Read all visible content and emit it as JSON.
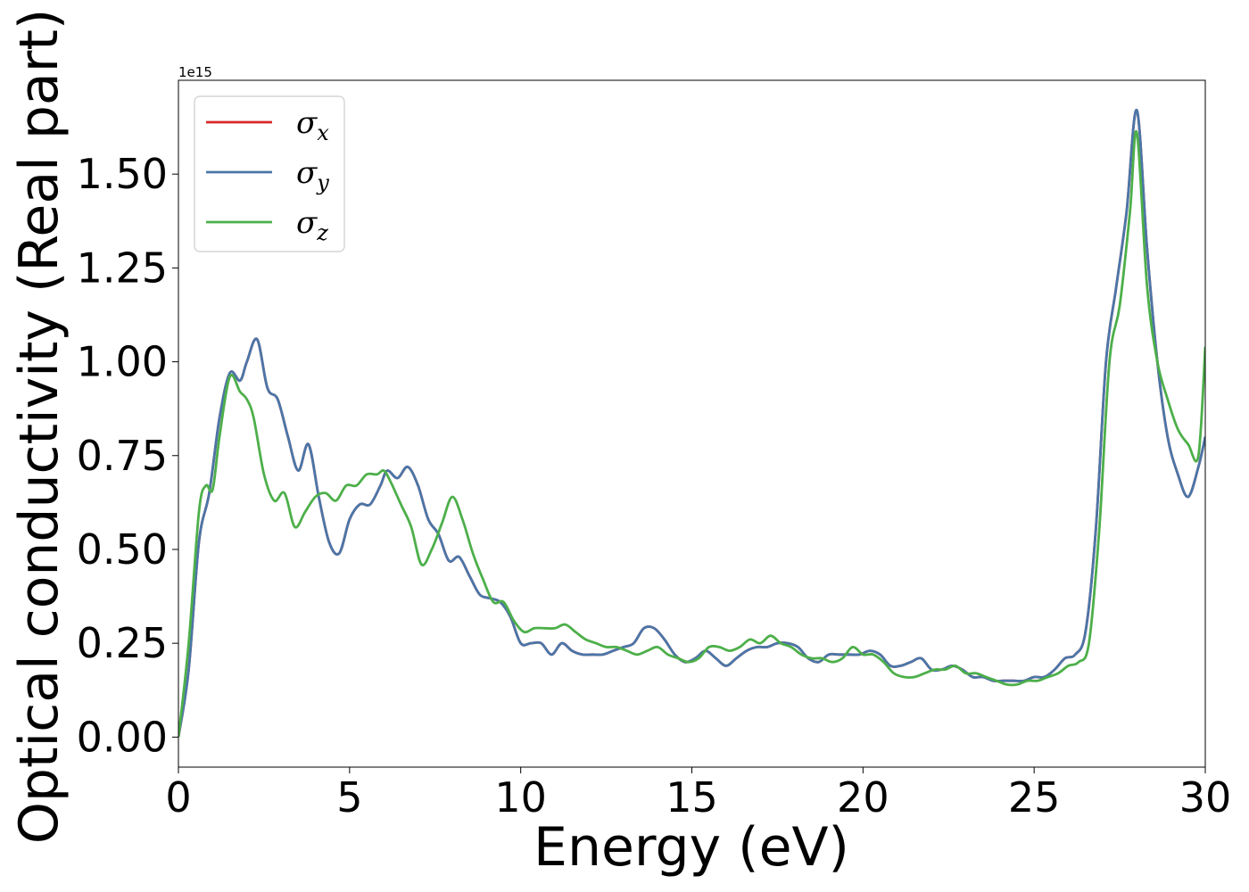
{
  "chart_data": {
    "type": "line",
    "xlabel": "Energy (eV)",
    "ylabel": "Optical conductivity (Real part)",
    "y_offset_text": "1e15",
    "xlim": [
      0,
      30
    ],
    "ylim": [
      -0.08,
      1.75
    ],
    "xticks": [
      0,
      5,
      10,
      15,
      20,
      25,
      30
    ],
    "xtick_labels": [
      "0",
      "5",
      "10",
      "15",
      "20",
      "25",
      "30"
    ],
    "yticks": [
      0.0,
      0.25,
      0.5,
      0.75,
      1.0,
      1.25,
      1.5
    ],
    "ytick_labels": [
      "0.00",
      "0.25",
      "0.50",
      "0.75",
      "1.00",
      "1.25",
      "1.50"
    ],
    "grid": false,
    "legend_position": "top-left",
    "series": [
      {
        "name": "σ",
        "sub": "x",
        "color": "#d62728",
        "x": [
          0,
          0.3,
          0.6,
          0.9,
          1.2,
          1.5,
          1.8,
          2.0,
          2.3,
          2.6,
          2.9,
          3.2,
          3.5,
          3.8,
          4.1,
          4.4,
          4.7,
          5.0,
          5.3,
          5.6,
          5.9,
          6.1,
          6.4,
          6.7,
          7.0,
          7.3,
          7.6,
          7.9,
          8.2,
          8.5,
          8.8,
          9.1,
          9.4,
          9.7,
          10.0,
          10.3,
          10.6,
          10.9,
          11.2,
          11.5,
          11.8,
          12.1,
          12.4,
          12.7,
          13.0,
          13.3,
          13.6,
          13.9,
          14.2,
          14.5,
          14.8,
          15.1,
          15.4,
          15.7,
          16.0,
          16.3,
          16.6,
          16.9,
          17.2,
          17.5,
          17.8,
          18.1,
          18.4,
          18.7,
          19.0,
          19.3,
          19.6,
          19.9,
          20.2,
          20.5,
          20.8,
          21.1,
          21.4,
          21.7,
          22.0,
          22.3,
          22.6,
          22.9,
          23.2,
          23.5,
          23.8,
          24.1,
          24.4,
          24.7,
          25.0,
          25.3,
          25.6,
          25.9,
          26.2,
          26.5,
          26.8,
          27.1,
          27.4,
          27.7,
          28.0,
          28.3,
          28.6,
          28.9,
          29.2,
          29.5,
          29.8,
          30.0
        ],
        "y": [
          0.0,
          0.18,
          0.52,
          0.65,
          0.85,
          0.97,
          0.95,
          1.0,
          1.06,
          0.93,
          0.9,
          0.8,
          0.71,
          0.78,
          0.64,
          0.52,
          0.49,
          0.58,
          0.62,
          0.62,
          0.67,
          0.71,
          0.69,
          0.72,
          0.67,
          0.58,
          0.54,
          0.47,
          0.48,
          0.43,
          0.38,
          0.37,
          0.36,
          0.32,
          0.25,
          0.25,
          0.25,
          0.22,
          0.25,
          0.23,
          0.22,
          0.22,
          0.22,
          0.23,
          0.24,
          0.25,
          0.29,
          0.29,
          0.26,
          0.22,
          0.2,
          0.21,
          0.23,
          0.21,
          0.19,
          0.21,
          0.23,
          0.24,
          0.24,
          0.25,
          0.25,
          0.24,
          0.21,
          0.2,
          0.22,
          0.22,
          0.22,
          0.22,
          0.23,
          0.22,
          0.19,
          0.19,
          0.2,
          0.21,
          0.18,
          0.18,
          0.19,
          0.18,
          0.16,
          0.16,
          0.15,
          0.15,
          0.15,
          0.15,
          0.16,
          0.16,
          0.18,
          0.21,
          0.22,
          0.28,
          0.55,
          1.0,
          1.2,
          1.4,
          1.67,
          1.3,
          1.0,
          0.8,
          0.7,
          0.64,
          0.72,
          0.8
        ]
      },
      {
        "name": "σ",
        "sub": "y",
        "color": "#4a76a8",
        "x": [
          0,
          0.3,
          0.6,
          0.9,
          1.2,
          1.5,
          1.8,
          2.0,
          2.3,
          2.6,
          2.9,
          3.2,
          3.5,
          3.8,
          4.1,
          4.4,
          4.7,
          5.0,
          5.3,
          5.6,
          5.9,
          6.1,
          6.4,
          6.7,
          7.0,
          7.3,
          7.6,
          7.9,
          8.2,
          8.5,
          8.8,
          9.1,
          9.4,
          9.7,
          10.0,
          10.3,
          10.6,
          10.9,
          11.2,
          11.5,
          11.8,
          12.1,
          12.4,
          12.7,
          13.0,
          13.3,
          13.6,
          13.9,
          14.2,
          14.5,
          14.8,
          15.1,
          15.4,
          15.7,
          16.0,
          16.3,
          16.6,
          16.9,
          17.2,
          17.5,
          17.8,
          18.1,
          18.4,
          18.7,
          19.0,
          19.3,
          19.6,
          19.9,
          20.2,
          20.5,
          20.8,
          21.1,
          21.4,
          21.7,
          22.0,
          22.3,
          22.6,
          22.9,
          23.2,
          23.5,
          23.8,
          24.1,
          24.4,
          24.7,
          25.0,
          25.3,
          25.6,
          25.9,
          26.2,
          26.5,
          26.8,
          27.1,
          27.4,
          27.7,
          28.0,
          28.3,
          28.6,
          28.9,
          29.2,
          29.5,
          29.8,
          30.0
        ],
        "y": [
          0.0,
          0.18,
          0.52,
          0.65,
          0.85,
          0.97,
          0.95,
          1.0,
          1.06,
          0.93,
          0.9,
          0.8,
          0.71,
          0.78,
          0.64,
          0.52,
          0.49,
          0.58,
          0.62,
          0.62,
          0.67,
          0.71,
          0.69,
          0.72,
          0.67,
          0.58,
          0.54,
          0.47,
          0.48,
          0.43,
          0.38,
          0.37,
          0.36,
          0.32,
          0.25,
          0.25,
          0.25,
          0.22,
          0.25,
          0.23,
          0.22,
          0.22,
          0.22,
          0.23,
          0.24,
          0.25,
          0.29,
          0.29,
          0.26,
          0.22,
          0.2,
          0.21,
          0.23,
          0.21,
          0.19,
          0.21,
          0.23,
          0.24,
          0.24,
          0.25,
          0.25,
          0.24,
          0.21,
          0.2,
          0.22,
          0.22,
          0.22,
          0.22,
          0.23,
          0.22,
          0.19,
          0.19,
          0.2,
          0.21,
          0.18,
          0.18,
          0.19,
          0.18,
          0.16,
          0.16,
          0.15,
          0.15,
          0.15,
          0.15,
          0.16,
          0.16,
          0.18,
          0.21,
          0.22,
          0.28,
          0.55,
          1.0,
          1.2,
          1.4,
          1.67,
          1.3,
          1.0,
          0.8,
          0.7,
          0.64,
          0.72,
          0.8
        ]
      },
      {
        "name": "σ",
        "sub": "z",
        "color": "#4daf4a",
        "x": [
          0,
          0.3,
          0.6,
          0.8,
          1.0,
          1.2,
          1.5,
          1.8,
          2.0,
          2.2,
          2.5,
          2.8,
          3.1,
          3.4,
          3.7,
          4.0,
          4.3,
          4.6,
          4.9,
          5.2,
          5.5,
          5.8,
          6.0,
          6.2,
          6.5,
          6.8,
          7.1,
          7.4,
          7.7,
          8.0,
          8.3,
          8.6,
          8.9,
          9.2,
          9.5,
          9.8,
          10.1,
          10.4,
          10.7,
          11.0,
          11.3,
          11.6,
          11.9,
          12.2,
          12.5,
          12.8,
          13.1,
          13.4,
          13.7,
          14.0,
          14.3,
          14.6,
          14.9,
          15.2,
          15.5,
          15.8,
          16.1,
          16.4,
          16.7,
          17.0,
          17.3,
          17.6,
          17.9,
          18.2,
          18.5,
          18.8,
          19.1,
          19.4,
          19.7,
          20.0,
          20.3,
          20.6,
          20.9,
          21.2,
          21.5,
          21.8,
          22.1,
          22.4,
          22.7,
          23.0,
          23.3,
          23.6,
          23.9,
          24.2,
          24.5,
          24.8,
          25.1,
          25.4,
          25.7,
          26.0,
          26.3,
          26.6,
          26.9,
          27.2,
          27.5,
          27.8,
          28.0,
          28.3,
          28.6,
          28.9,
          29.2,
          29.5,
          29.8,
          30.0
        ],
        "y": [
          0.0,
          0.25,
          0.6,
          0.67,
          0.66,
          0.8,
          0.96,
          0.92,
          0.9,
          0.85,
          0.7,
          0.63,
          0.65,
          0.56,
          0.6,
          0.64,
          0.65,
          0.63,
          0.67,
          0.67,
          0.7,
          0.7,
          0.71,
          0.68,
          0.62,
          0.56,
          0.46,
          0.5,
          0.57,
          0.64,
          0.58,
          0.49,
          0.42,
          0.36,
          0.36,
          0.31,
          0.28,
          0.29,
          0.29,
          0.29,
          0.3,
          0.28,
          0.26,
          0.25,
          0.24,
          0.24,
          0.23,
          0.22,
          0.23,
          0.24,
          0.22,
          0.21,
          0.2,
          0.21,
          0.24,
          0.24,
          0.23,
          0.24,
          0.26,
          0.25,
          0.27,
          0.25,
          0.24,
          0.22,
          0.21,
          0.21,
          0.2,
          0.21,
          0.24,
          0.22,
          0.22,
          0.2,
          0.17,
          0.16,
          0.16,
          0.17,
          0.18,
          0.18,
          0.19,
          0.17,
          0.17,
          0.16,
          0.15,
          0.14,
          0.14,
          0.15,
          0.15,
          0.16,
          0.17,
          0.19,
          0.2,
          0.25,
          0.55,
          1.0,
          1.15,
          1.4,
          1.61,
          1.2,
          1.0,
          0.9,
          0.82,
          0.78,
          0.75,
          1.04
        ]
      }
    ]
  }
}
